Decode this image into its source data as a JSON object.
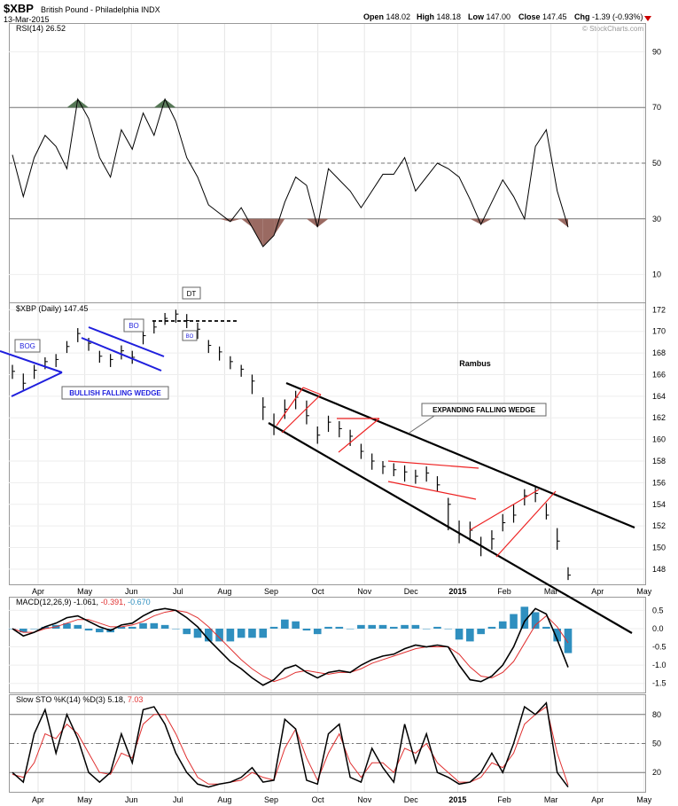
{
  "header": {
    "symbol": "$XBP",
    "name": "British Pound - Philadelphia",
    "exchange": "INDX",
    "date": "13-Mar-2015",
    "open_label": "Open",
    "open": "148.02",
    "high_label": "High",
    "high": "148.18",
    "low_label": "Low",
    "low": "147.00",
    "close_label": "Close",
    "close": "147.45",
    "chg_label": "Chg",
    "chg": "-1.39 (-0.93%)",
    "watermark": "© StockCharts.com"
  },
  "colors": {
    "price": "#000000",
    "trendline": "#000000",
    "blue_lines": "#1f1fdd",
    "red_lines": "#ee2222",
    "rsi_down_fill": "#9a6a62",
    "rsi_up_fill": "#557755",
    "macd_hist": "#2f8fbf",
    "macd_signal": "#e03030",
    "down_arrow": "#cc0000",
    "grid": "#cccccc"
  },
  "chart_data": [
    {
      "type": "line",
      "panel": "rsi",
      "label": "RSI(14) 26.52",
      "y_ticks": [
        90,
        70,
        50,
        30,
        10
      ],
      "levels": [
        70,
        50,
        30
      ],
      "ylim": [
        0,
        100
      ],
      "x": [
        "Mar 23",
        "Mar 30",
        "Apr 6",
        "Apr 13",
        "Apr 20",
        "Apr 27",
        "May 4",
        "May 11",
        "May 18",
        "May 25",
        "Jun 1",
        "Jun 8",
        "Jun 15",
        "Jun 22",
        "Jun 29",
        "Jul 6",
        "Jul 13",
        "Jul 20",
        "Jul 27",
        "Aug 3",
        "Aug 10",
        "Aug 17",
        "Aug 24",
        "Aug 31",
        "Sep 7",
        "Sep 14",
        "Sep 21",
        "Sep 28",
        "Oct 5",
        "Oct 12",
        "Oct 19",
        "Oct 26",
        "Nov 2",
        "Nov 9",
        "Nov 16",
        "Nov 23",
        "Nov 30",
        "Dec 7",
        "Dec 14",
        "Dec 21",
        "Dec 28",
        "Jan 5",
        "Jan 12",
        "Jan 19",
        "Jan 26",
        "Feb 2",
        "Feb 9",
        "Feb 16",
        "Feb 23",
        "Mar 2",
        "Mar 9",
        "Mar 13"
      ],
      "values": [
        53,
        38,
        52,
        60,
        56,
        48,
        73,
        66,
        52,
        45,
        62,
        55,
        68,
        60,
        73,
        65,
        52,
        45,
        35,
        32,
        29,
        34,
        27,
        20,
        24,
        36,
        45,
        42,
        27,
        48,
        44,
        40,
        34,
        40,
        46,
        46,
        52,
        40,
        45,
        50,
        48,
        45,
        37,
        28,
        36,
        44,
        38,
        30,
        56,
        62,
        40,
        27
      ]
    },
    {
      "type": "candlestick",
      "panel": "price",
      "label": "$XBP (Daily) 147.45",
      "y_ticks": [
        172,
        170,
        168,
        166,
        164,
        162,
        160,
        158,
        156,
        154,
        152,
        150,
        148
      ],
      "ylim": [
        146.6,
        172.6
      ],
      "x": [
        "Mar 23",
        "Mar 30",
        "Apr 6",
        "Apr 13",
        "Apr 20",
        "Apr 27",
        "May 4",
        "May 11",
        "May 18",
        "May 25",
        "Jun 1",
        "Jun 8",
        "Jun 15",
        "Jun 22",
        "Jun 29",
        "Jul 6",
        "Jul 13",
        "Jul 20",
        "Jul 27",
        "Aug 3",
        "Aug 10",
        "Aug 17",
        "Aug 24",
        "Aug 31",
        "Sep 7",
        "Sep 14",
        "Sep 21",
        "Sep 28",
        "Oct 5",
        "Oct 12",
        "Oct 19",
        "Oct 26",
        "Nov 2",
        "Nov 9",
        "Nov 16",
        "Nov 23",
        "Nov 30",
        "Dec 7",
        "Dec 14",
        "Dec 21",
        "Dec 28",
        "Jan 5",
        "Jan 12",
        "Jan 19",
        "Jan 26",
        "Feb 2",
        "Feb 9",
        "Feb 16",
        "Feb 23",
        "Mar 2",
        "Mar 9",
        "Mar 13"
      ],
      "close": [
        166.3,
        165.2,
        166.4,
        167.2,
        167.4,
        168.6,
        169.8,
        168.9,
        167.7,
        167.4,
        168.2,
        167.6,
        169.6,
        170.4,
        171.2,
        171.6,
        171.0,
        170.2,
        168.7,
        168.1,
        167.2,
        166.5,
        165.4,
        163.0,
        161.2,
        162.8,
        163.9,
        162.2,
        160.4,
        161.6,
        161.0,
        160.3,
        158.9,
        158.0,
        157.5,
        157.2,
        157.0,
        156.6,
        156.9,
        155.8,
        154.0,
        151.2,
        151.6,
        150.1,
        150.8,
        152.3,
        153.0,
        154.8,
        155.0,
        153.0,
        150.6,
        147.45
      ],
      "high": [
        166.9,
        166.1,
        166.9,
        167.6,
        167.9,
        169.1,
        170.3,
        169.4,
        168.2,
        167.9,
        168.7,
        168.2,
        170.1,
        170.9,
        171.7,
        172.0,
        171.6,
        170.8,
        169.2,
        168.6,
        167.7,
        166.9,
        166.0,
        163.9,
        162.4,
        163.7,
        164.5,
        163.6,
        161.2,
        162.2,
        161.7,
        160.9,
        159.6,
        158.7,
        158.0,
        157.8,
        157.6,
        157.2,
        157.5,
        156.6,
        154.6,
        152.5,
        152.4,
        151.0,
        151.6,
        153.1,
        154.0,
        155.4,
        155.6,
        154.1,
        151.8,
        148.18
      ],
      "low": [
        165.6,
        164.6,
        165.6,
        166.5,
        166.7,
        168.0,
        169.0,
        168.2,
        167.1,
        166.7,
        167.4,
        167.0,
        168.8,
        169.8,
        170.6,
        170.8,
        170.3,
        169.3,
        168.0,
        167.3,
        166.5,
        165.8,
        164.2,
        161.8,
        160.4,
        161.9,
        162.8,
        161.4,
        159.6,
        160.7,
        160.2,
        159.4,
        158.2,
        157.2,
        156.8,
        156.6,
        156.1,
        155.9,
        156.1,
        155.2,
        151.6,
        150.4,
        150.6,
        149.2,
        149.8,
        151.5,
        152.3,
        153.9,
        154.2,
        152.6,
        149.8,
        147.0
      ]
    },
    {
      "type": "line",
      "panel": "macd",
      "label": "MACD(12,26,9) -1.061, -0.391, -0.670",
      "label_macd": "MACD(12,26,9) -1.061,",
      "label_signal": "-0.391,",
      "label_hist": "-0.670",
      "y_ticks": [
        0.5,
        0.0,
        -0.5,
        -1.0,
        -1.5
      ],
      "ylim": [
        -1.75,
        0.85
      ],
      "x": [
        "Mar 23",
        "Mar 30",
        "Apr 6",
        "Apr 13",
        "Apr 20",
        "Apr 27",
        "May 4",
        "May 11",
        "May 18",
        "May 25",
        "Jun 1",
        "Jun 8",
        "Jun 15",
        "Jun 22",
        "Jun 29",
        "Jul 6",
        "Jul 13",
        "Jul 20",
        "Jul 27",
        "Aug 3",
        "Aug 10",
        "Aug 17",
        "Aug 24",
        "Aug 31",
        "Sep 7",
        "Sep 14",
        "Sep 21",
        "Sep 28",
        "Oct 5",
        "Oct 12",
        "Oct 19",
        "Oct 26",
        "Nov 2",
        "Nov 9",
        "Nov 16",
        "Nov 23",
        "Nov 30",
        "Dec 7",
        "Dec 14",
        "Dec 21",
        "Dec 28",
        "Jan 5",
        "Jan 12",
        "Jan 19",
        "Jan 26",
        "Feb 2",
        "Feb 9",
        "Feb 16",
        "Feb 23",
        "Mar 2",
        "Mar 9",
        "Mar 13"
      ],
      "series": [
        {
          "name": "MACD",
          "values": [
            0.0,
            -0.2,
            -0.1,
            0.05,
            0.15,
            0.3,
            0.35,
            0.2,
            0.05,
            -0.05,
            0.1,
            0.15,
            0.35,
            0.5,
            0.55,
            0.5,
            0.3,
            0.05,
            -0.3,
            -0.6,
            -0.9,
            -1.1,
            -1.35,
            -1.55,
            -1.4,
            -1.1,
            -1.0,
            -1.2,
            -1.35,
            -1.2,
            -1.15,
            -1.2,
            -1.0,
            -0.85,
            -0.75,
            -0.7,
            -0.55,
            -0.45,
            -0.5,
            -0.45,
            -0.5,
            -1.0,
            -1.4,
            -1.45,
            -1.3,
            -1.0,
            -0.5,
            0.2,
            0.55,
            0.4,
            -0.3,
            -1.06
          ]
        },
        {
          "name": "Signal",
          "values": [
            0.0,
            -0.1,
            -0.1,
            0.0,
            0.05,
            0.15,
            0.25,
            0.25,
            0.15,
            0.05,
            0.05,
            0.1,
            0.2,
            0.35,
            0.45,
            0.5,
            0.45,
            0.3,
            0.05,
            -0.25,
            -0.55,
            -0.85,
            -1.1,
            -1.3,
            -1.45,
            -1.35,
            -1.2,
            -1.15,
            -1.2,
            -1.25,
            -1.2,
            -1.2,
            -1.1,
            -0.95,
            -0.85,
            -0.75,
            -0.65,
            -0.55,
            -0.5,
            -0.5,
            -0.5,
            -0.7,
            -1.05,
            -1.3,
            -1.35,
            -1.2,
            -0.9,
            -0.4,
            0.1,
            0.35,
            0.05,
            -0.39
          ]
        }
      ],
      "histogram": [
        0.0,
        -0.1,
        0.0,
        0.05,
        0.1,
        0.15,
        0.1,
        -0.05,
        -0.1,
        -0.1,
        0.05,
        0.05,
        0.15,
        0.15,
        0.1,
        0.0,
        -0.15,
        -0.25,
        -0.35,
        -0.35,
        -0.35,
        -0.25,
        -0.25,
        -0.25,
        0.05,
        0.25,
        0.2,
        -0.05,
        -0.15,
        0.05,
        0.05,
        0.0,
        0.1,
        0.1,
        0.1,
        0.05,
        0.1,
        0.1,
        0.0,
        0.05,
        0.0,
        -0.3,
        -0.35,
        -0.15,
        0.05,
        0.2,
        0.4,
        0.6,
        0.45,
        0.05,
        -0.35,
        -0.67
      ]
    },
    {
      "type": "line",
      "panel": "stochastic",
      "label": "Slow STO %K(14) %D(3) 5.18, 7.03",
      "label_k": "Slow STO %K(14) %D(3) 5.18,",
      "label_d": "7.03",
      "y_ticks": [
        80,
        50,
        20
      ],
      "levels": [
        80,
        50,
        20
      ],
      "ylim": [
        0,
        100
      ],
      "x": [
        "Mar 23",
        "Mar 30",
        "Apr 6",
        "Apr 13",
        "Apr 20",
        "Apr 27",
        "May 4",
        "May 11",
        "May 18",
        "May 25",
        "Jun 1",
        "Jun 8",
        "Jun 15",
        "Jun 22",
        "Jun 29",
        "Jul 6",
        "Jul 13",
        "Jul 20",
        "Jul 27",
        "Aug 3",
        "Aug 10",
        "Aug 17",
        "Aug 24",
        "Aug 31",
        "Sep 7",
        "Sep 14",
        "Sep 21",
        "Sep 28",
        "Oct 5",
        "Oct 12",
        "Oct 19",
        "Oct 26",
        "Nov 2",
        "Nov 9",
        "Nov 16",
        "Nov 23",
        "Nov 30",
        "Dec 7",
        "Dec 14",
        "Dec 21",
        "Dec 28",
        "Jan 5",
        "Jan 12",
        "Jan 19",
        "Jan 26",
        "Feb 2",
        "Feb 9",
        "Feb 16",
        "Feb 23",
        "Mar 2",
        "Mar 9",
        "Mar 13"
      ],
      "series": [
        {
          "name": "%K",
          "values": [
            20,
            10,
            60,
            85,
            40,
            80,
            55,
            20,
            10,
            20,
            60,
            30,
            85,
            88,
            70,
            40,
            20,
            8,
            5,
            8,
            10,
            15,
            25,
            10,
            12,
            75,
            65,
            12,
            8,
            60,
            70,
            15,
            10,
            45,
            25,
            10,
            70,
            30,
            60,
            20,
            15,
            8,
            10,
            20,
            40,
            20,
            50,
            88,
            80,
            92,
            20,
            5
          ]
        },
        {
          "name": "%D",
          "values": [
            18,
            15,
            30,
            60,
            55,
            70,
            60,
            40,
            20,
            18,
            40,
            35,
            70,
            80,
            80,
            60,
            35,
            15,
            8,
            8,
            10,
            12,
            20,
            15,
            12,
            45,
            65,
            35,
            12,
            40,
            60,
            30,
            15,
            30,
            30,
            20,
            45,
            40,
            50,
            30,
            20,
            10,
            10,
            15,
            30,
            25,
            40,
            70,
            80,
            88,
            40,
            7
          ]
        }
      ]
    }
  ],
  "x_axis": {
    "months": [
      "Apr",
      "May",
      "Jun",
      "Jul",
      "Aug",
      "Sep",
      "Oct",
      "Nov",
      "Dec",
      "2015",
      "Feb",
      "Mar",
      "Apr",
      "May"
    ]
  },
  "annotations": {
    "rambus": "Rambus",
    "expanding_falling_wedge": "EXPANDING FALLING WEDGE",
    "bullish_falling_wedge": "BULLISH FALLING WEDGE",
    "bog": "BOG",
    "bo": "BO",
    "dt": "DT",
    "bo2": "BO"
  }
}
